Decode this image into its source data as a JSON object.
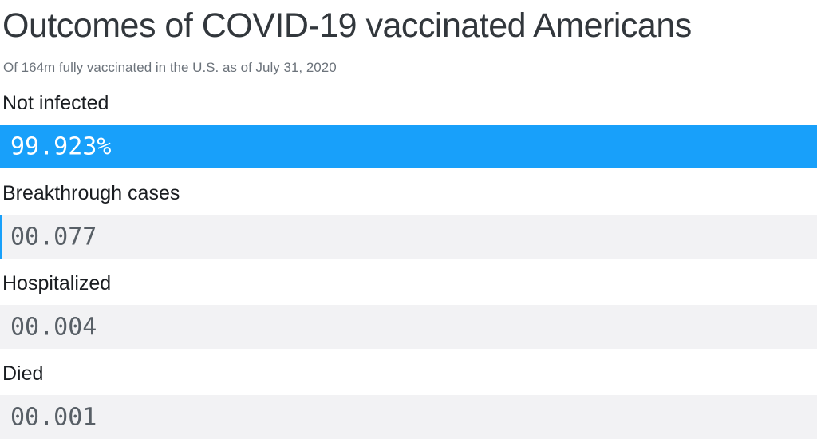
{
  "header": {
    "title": "Outcomes of COVID-19 vaccinated Americans",
    "subtitle": "Of 164m fully vaccinated in the U.S. as of July 31, 2020"
  },
  "chart_data": {
    "type": "bar",
    "orientation": "horizontal",
    "title": "Outcomes of COVID-19 vaccinated Americans",
    "subtitle": "Of 164m fully vaccinated in the U.S. as of July 31, 2020",
    "categories": [
      "Not infected",
      "Breakthrough cases",
      "Hospitalized",
      "Died"
    ],
    "values": [
      99.923,
      0.077,
      0.004,
      0.001
    ],
    "display_values": [
      "99.923%",
      "00.077",
      "00.004",
      "00.001"
    ],
    "unit": "percent of 164m fully vaccinated",
    "xlim": [
      0,
      100
    ],
    "grid": "off",
    "legend": "none",
    "colors": {
      "bar_fill": "#18a0fa",
      "bar_track": "#f2f2f4",
      "value_on_fill": "#ffffff",
      "value_on_track": "#585f66",
      "label_text": "#1a1d21",
      "title_text": "#32373c",
      "subtitle_text": "#6c737b"
    }
  }
}
